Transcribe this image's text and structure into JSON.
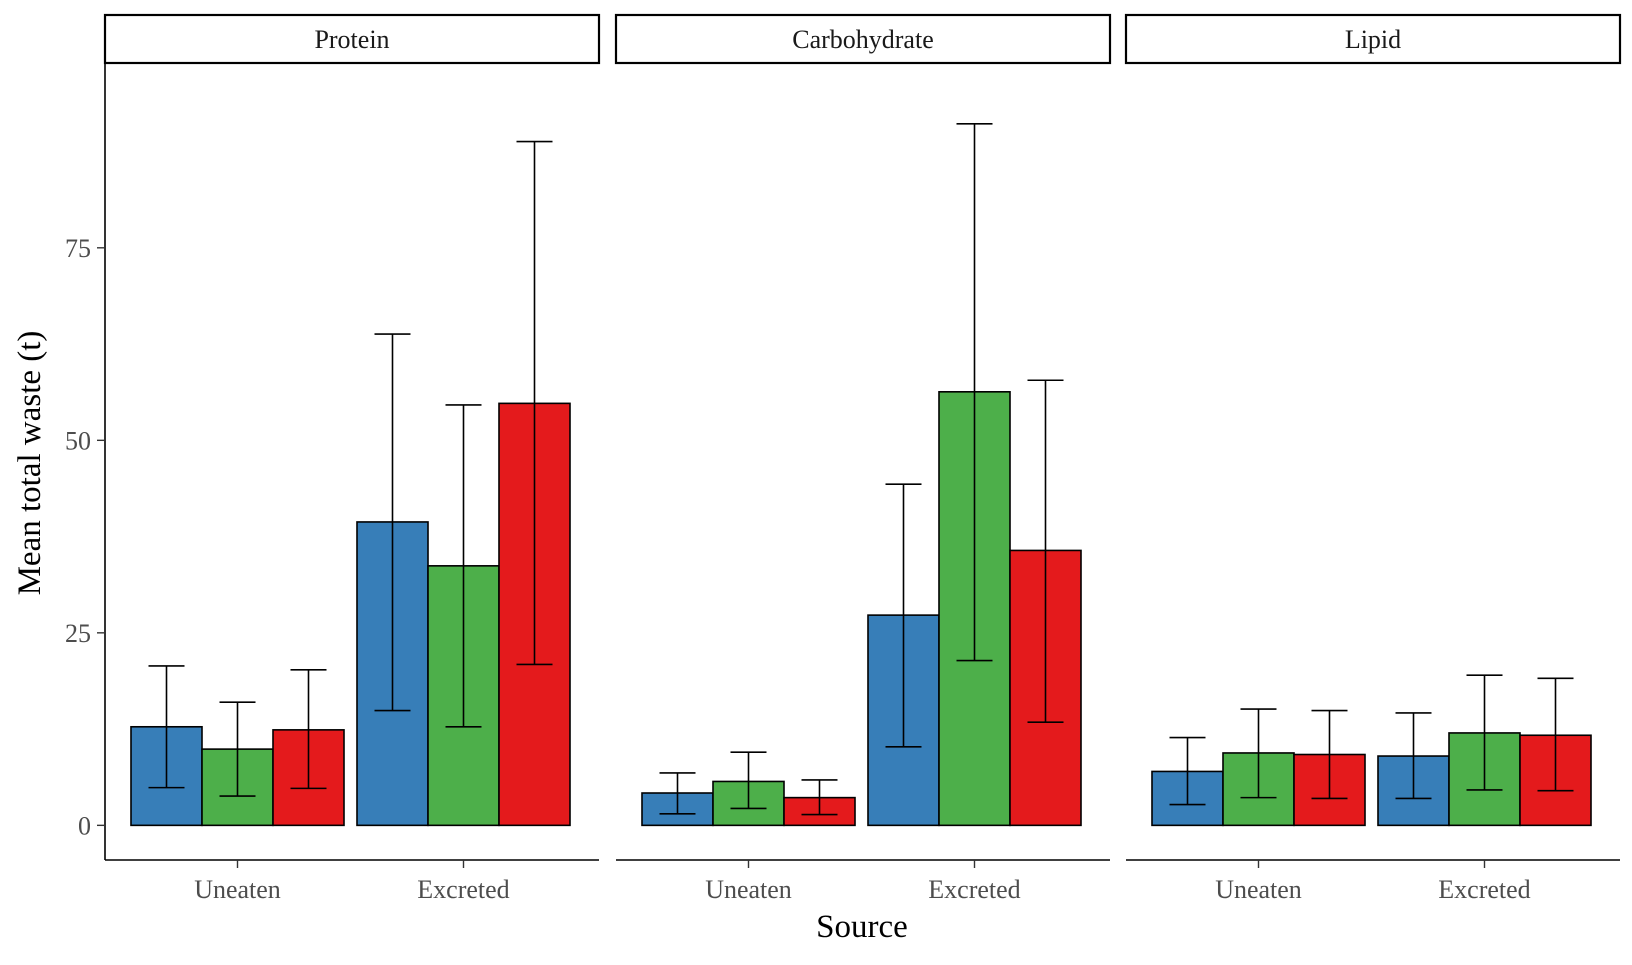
{
  "chart_data": {
    "type": "bar",
    "facets": [
      "Protein",
      "Carbohydrate",
      "Lipid"
    ],
    "categories": [
      "Uneaten",
      "Excreted"
    ],
    "xlabel": "Source",
    "ylabel": "Mean total waste (t)",
    "ylim": [
      -4.5,
      99
    ],
    "yticks": [
      0,
      25,
      50,
      75
    ],
    "grid": false,
    "legend": "none",
    "series": [
      {
        "color": "#377EB8",
        "values": [
          [
            12.8,
            39.4
          ],
          [
            4.2,
            27.3
          ],
          [
            7.0,
            9.0
          ]
        ],
        "err_low": [
          [
            4.9,
            14.9
          ],
          [
            1.5,
            10.2
          ],
          [
            2.7,
            3.5
          ]
        ],
        "err_high": [
          [
            20.7,
            63.8
          ],
          [
            6.8,
            44.3
          ],
          [
            11.4,
            14.6
          ]
        ]
      },
      {
        "color": "#4DAF4A",
        "values": [
          [
            9.9,
            33.7
          ],
          [
            5.7,
            56.3
          ],
          [
            9.4,
            12.0
          ]
        ],
        "err_low": [
          [
            3.8,
            12.8
          ],
          [
            2.2,
            21.4
          ],
          [
            3.6,
            4.6
          ]
        ],
        "err_high": [
          [
            16.0,
            54.6
          ],
          [
            9.5,
            91.1
          ],
          [
            15.1,
            19.5
          ]
        ]
      },
      {
        "color": "#E41A1C",
        "values": [
          [
            12.4,
            54.8
          ],
          [
            3.6,
            35.7
          ],
          [
            9.2,
            11.7
          ]
        ],
        "err_low": [
          [
            4.8,
            20.9
          ],
          [
            1.4,
            13.4
          ],
          [
            3.5,
            4.5
          ]
        ],
        "err_high": [
          [
            20.2,
            88.8
          ],
          [
            5.9,
            57.8
          ],
          [
            14.9,
            19.1
          ]
        ]
      }
    ]
  }
}
